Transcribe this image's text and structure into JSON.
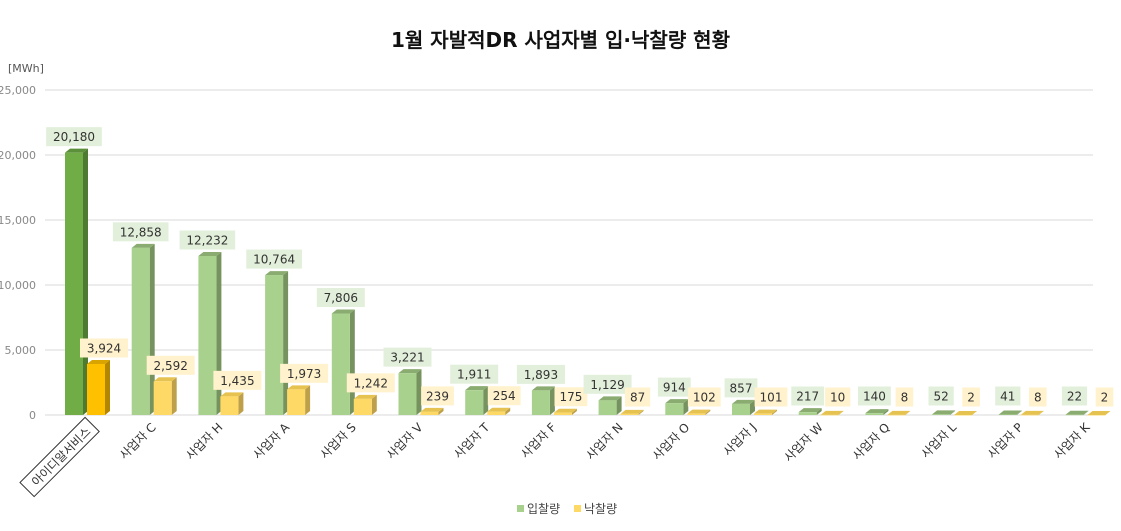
{
  "chart_data": {
    "type": "bar",
    "title": "1월 자발적DR 사업자별 입·낙찰량 현황",
    "unit_label": "[MWh]",
    "ylim": [
      0,
      25000
    ],
    "yticks": [
      "0",
      "5,000",
      "10,000",
      "15,000",
      "20,000",
      "25,000"
    ],
    "ytick_values": [
      0,
      5000,
      10000,
      15000,
      20000,
      25000
    ],
    "grid": true,
    "legend_position": "bottom-center",
    "categories": [
      "아이디알서비스",
      "사업자 C",
      "사업자 H",
      "사업자 A",
      "사업자 S",
      "사업자 V",
      "사업자 T",
      "사업자 F",
      "사업자 N",
      "사업자 O",
      "사업자 J",
      "사업자 W",
      "사업자 Q",
      "사업자 L",
      "사업자 P",
      "사업자 K"
    ],
    "series": [
      {
        "name": "입찰량",
        "values": [
          20180,
          12858,
          12232,
          10764,
          7806,
          3221,
          1911,
          1893,
          1129,
          914,
          857,
          217,
          140,
          52,
          41,
          22
        ],
        "labels": [
          "20,180",
          "12,858",
          "12,232",
          "10,764",
          "7,806",
          "3,221",
          "1,911",
          "1,893",
          "1,129",
          "914",
          "857",
          "217",
          "140",
          "52",
          "41",
          "22"
        ]
      },
      {
        "name": "낙찰량",
        "values": [
          3924,
          2592,
          1435,
          1973,
          1242,
          239,
          254,
          175,
          87,
          102,
          101,
          10,
          8,
          2,
          8,
          2
        ],
        "labels": [
          "3,924",
          "2,592",
          "1,435",
          "1,973",
          "1,242",
          "239",
          "254",
          "175",
          "87",
          "102",
          "101",
          "10",
          "8",
          "2",
          "8",
          "2"
        ]
      }
    ],
    "colors": {
      "bid_front": "#a9d18e",
      "bid_side": "#76935f",
      "bid_top": "#8aac71",
      "bid_highlight_front": "#70ad47",
      "bid_highlight_side": "#4e7a31",
      "bid_highlight_top": "#5c8f3a",
      "win_front": "#ffd966",
      "win_side": "#bfa04a",
      "win_top": "#e6c350",
      "win_highlight_front": "#ffc000",
      "win_highlight_side": "#b38600",
      "win_highlight_top": "#d9a300",
      "bid_label_bg": "#e2efda",
      "win_label_bg": "#fff2cc",
      "grid": "#d9d9d9"
    }
  }
}
